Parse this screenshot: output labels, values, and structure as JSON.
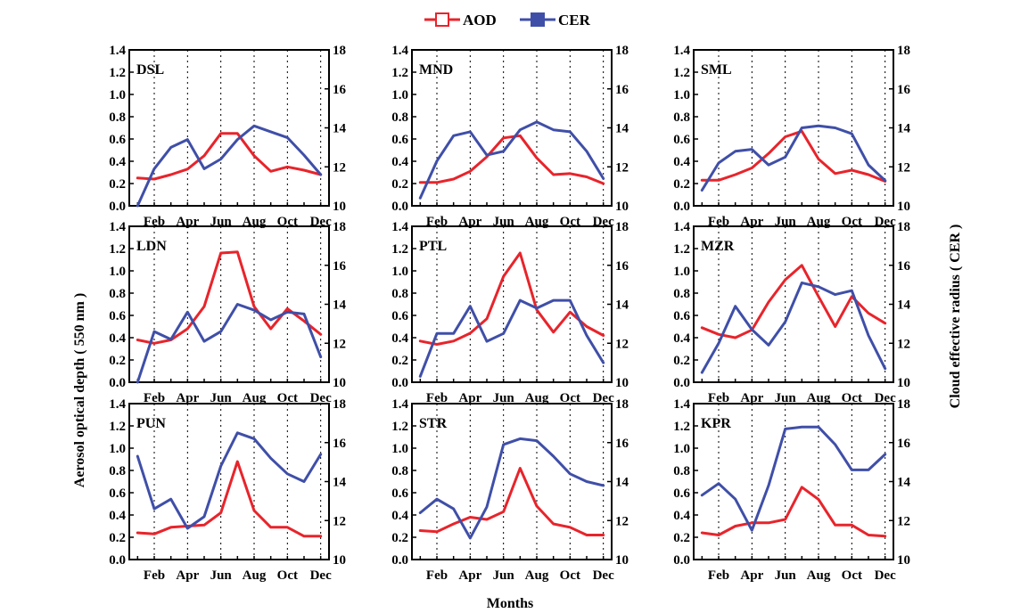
{
  "chart_data": {
    "type": "line",
    "legend": {
      "placement": "top-center",
      "entries": [
        {
          "label": "AOD",
          "color": "#e8242b",
          "marker": "open-square"
        },
        {
          "label": "CER",
          "color": "#3f4fa8",
          "marker": "filled-square"
        }
      ]
    },
    "xlabel": "Months",
    "ylabel_left": "Aerosol optical depth ( 550  nm )",
    "ylabel_right": "Cloud effective radius ( CER )",
    "x_tick_labels": [
      "Feb",
      "Apr",
      "Jun",
      "Aug",
      "Oct",
      "Dec"
    ],
    "y_left_ticks": [
      "0.0",
      "0.2",
      "0.4",
      "0.6",
      "0.8",
      "1.0",
      "1.2",
      "1.4"
    ],
    "y_right_ticks": [
      "10",
      "12",
      "14",
      "16",
      "18"
    ],
    "ylim_left": [
      0,
      1.4
    ],
    "ylim_right": [
      10,
      18
    ],
    "x_months": [
      1,
      2,
      3,
      4,
      5,
      6,
      7,
      8,
      9,
      10,
      11,
      12
    ],
    "grid": "vertical-dotted-at-ticks",
    "panels": [
      {
        "name": "DSL",
        "aod": [
          0.25,
          0.24,
          0.28,
          0.33,
          0.45,
          0.65,
          0.65,
          0.45,
          0.31,
          0.35,
          0.32,
          0.28
        ],
        "cer": [
          10.0,
          11.9,
          13.0,
          13.4,
          11.9,
          12.4,
          13.4,
          14.1,
          13.8,
          13.5,
          12.6,
          11.6
        ]
      },
      {
        "name": "MND",
        "aod": [
          0.21,
          0.21,
          0.24,
          0.31,
          0.44,
          0.61,
          0.63,
          0.43,
          0.28,
          0.29,
          0.26,
          0.2
        ],
        "cer": [
          10.4,
          12.3,
          13.6,
          13.8,
          12.6,
          12.8,
          13.9,
          14.3,
          13.9,
          13.8,
          12.8,
          11.4
        ]
      },
      {
        "name": "SML",
        "aod": [
          0.23,
          0.23,
          0.28,
          0.34,
          0.47,
          0.62,
          0.67,
          0.42,
          0.29,
          0.32,
          0.28,
          0.22
        ],
        "cer": [
          10.8,
          12.2,
          12.8,
          12.9,
          12.1,
          12.5,
          14.0,
          14.1,
          14.0,
          13.7,
          12.1,
          11.3
        ]
      },
      {
        "name": "LDN",
        "aod": [
          0.38,
          0.35,
          0.38,
          0.48,
          0.68,
          1.16,
          1.17,
          0.68,
          0.48,
          0.66,
          0.55,
          0.43
        ],
        "cer": [
          10.0,
          12.6,
          12.2,
          13.6,
          12.1,
          12.6,
          14.0,
          13.7,
          13.2,
          13.6,
          13.5,
          11.3
        ]
      },
      {
        "name": "PTL",
        "aod": [
          0.37,
          0.34,
          0.37,
          0.44,
          0.57,
          0.95,
          1.16,
          0.65,
          0.45,
          0.63,
          0.5,
          0.42
        ],
        "cer": [
          10.3,
          12.5,
          12.5,
          13.9,
          12.1,
          12.5,
          14.2,
          13.8,
          14.2,
          14.2,
          12.4,
          11.0
        ]
      },
      {
        "name": "MZR",
        "aod": [
          0.49,
          0.43,
          0.4,
          0.47,
          0.72,
          0.92,
          1.05,
          0.77,
          0.5,
          0.77,
          0.62,
          0.53
        ],
        "cer": [
          10.5,
          12.0,
          13.9,
          12.7,
          11.9,
          13.1,
          15.1,
          14.9,
          14.5,
          14.7,
          12.4,
          10.7
        ]
      },
      {
        "name": "PUN",
        "aod": [
          0.24,
          0.23,
          0.29,
          0.3,
          0.31,
          0.42,
          0.88,
          0.44,
          0.29,
          0.29,
          0.21,
          0.21
        ],
        "cer": [
          15.3,
          12.6,
          13.1,
          11.6,
          12.2,
          14.8,
          16.5,
          16.2,
          15.2,
          14.4,
          14.0,
          15.4
        ]
      },
      {
        "name": "STR",
        "aod": [
          0.26,
          0.25,
          0.32,
          0.38,
          0.36,
          0.43,
          0.82,
          0.48,
          0.32,
          0.29,
          0.22,
          0.22
        ],
        "cer": [
          12.4,
          13.1,
          12.6,
          11.1,
          12.7,
          15.9,
          16.2,
          16.1,
          15.3,
          14.4,
          14.0,
          13.8
        ]
      },
      {
        "name": "KPR",
        "aod": [
          0.24,
          0.22,
          0.3,
          0.33,
          0.33,
          0.36,
          0.65,
          0.54,
          0.31,
          0.31,
          0.22,
          0.21
        ],
        "cer": [
          13.3,
          13.9,
          13.1,
          11.5,
          13.8,
          16.7,
          16.8,
          16.8,
          15.9,
          14.6,
          14.6,
          15.4
        ]
      }
    ]
  }
}
